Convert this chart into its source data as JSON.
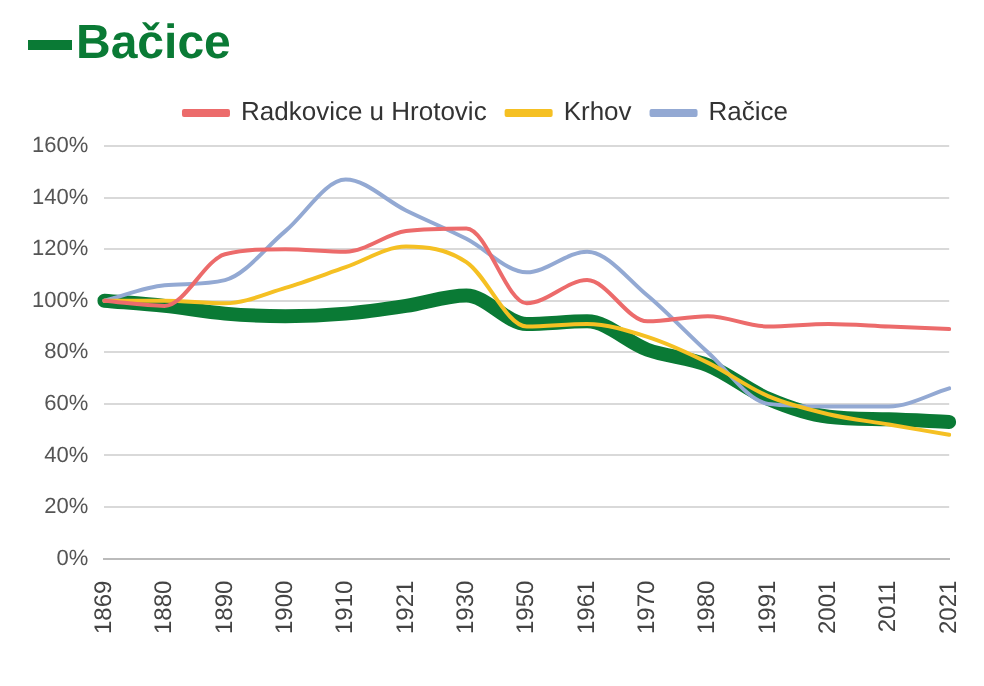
{
  "chart_data": {
    "type": "line",
    "title": "Bačice",
    "categories": [
      "1869",
      "1880",
      "1890",
      "1900",
      "1910",
      "1921",
      "1930",
      "1950",
      "1961",
      "1970",
      "1980",
      "1991",
      "2001",
      "2011",
      "2021"
    ],
    "series": [
      {
        "name": "Radkovice u Hrotovic",
        "color": "#ec6b6b",
        "values": [
          100,
          98,
          118,
          120,
          119,
          127,
          128,
          99,
          108,
          92,
          94,
          90,
          91,
          90,
          89
        ]
      },
      {
        "name": "Krhov",
        "color": "#f5c023",
        "values": [
          100,
          100,
          99,
          105,
          113,
          121,
          115,
          90,
          91,
          86,
          76,
          63,
          56,
          52,
          48
        ]
      },
      {
        "name": "Račice",
        "color": "#93a9d3",
        "values": [
          100,
          106,
          108,
          127,
          147,
          135,
          124,
          111,
          119,
          102,
          80,
          60,
          59,
          59,
          66
        ]
      },
      {
        "color": "#0a7a35",
        "values": [
          100,
          98,
          95,
          94,
          95,
          98,
          102,
          91,
          92,
          81,
          75,
          62,
          55,
          54,
          53
        ]
      }
    ],
    "ylim": [
      0,
      160
    ],
    "yticks": [
      {
        "value": 0,
        "label": "0%"
      },
      {
        "value": 20,
        "label": "20%"
      },
      {
        "value": 40,
        "label": "40%"
      },
      {
        "value": 60,
        "label": "60%"
      },
      {
        "value": 80,
        "label": "80%"
      },
      {
        "value": 100,
        "label": "100%"
      },
      {
        "value": 120,
        "label": "120%"
      },
      {
        "value": 140,
        "label": "140%"
      },
      {
        "value": 160,
        "label": "160%"
      }
    ],
    "grid": "y",
    "legend": "top",
    "marker": "none",
    "line_style": "solid"
  }
}
